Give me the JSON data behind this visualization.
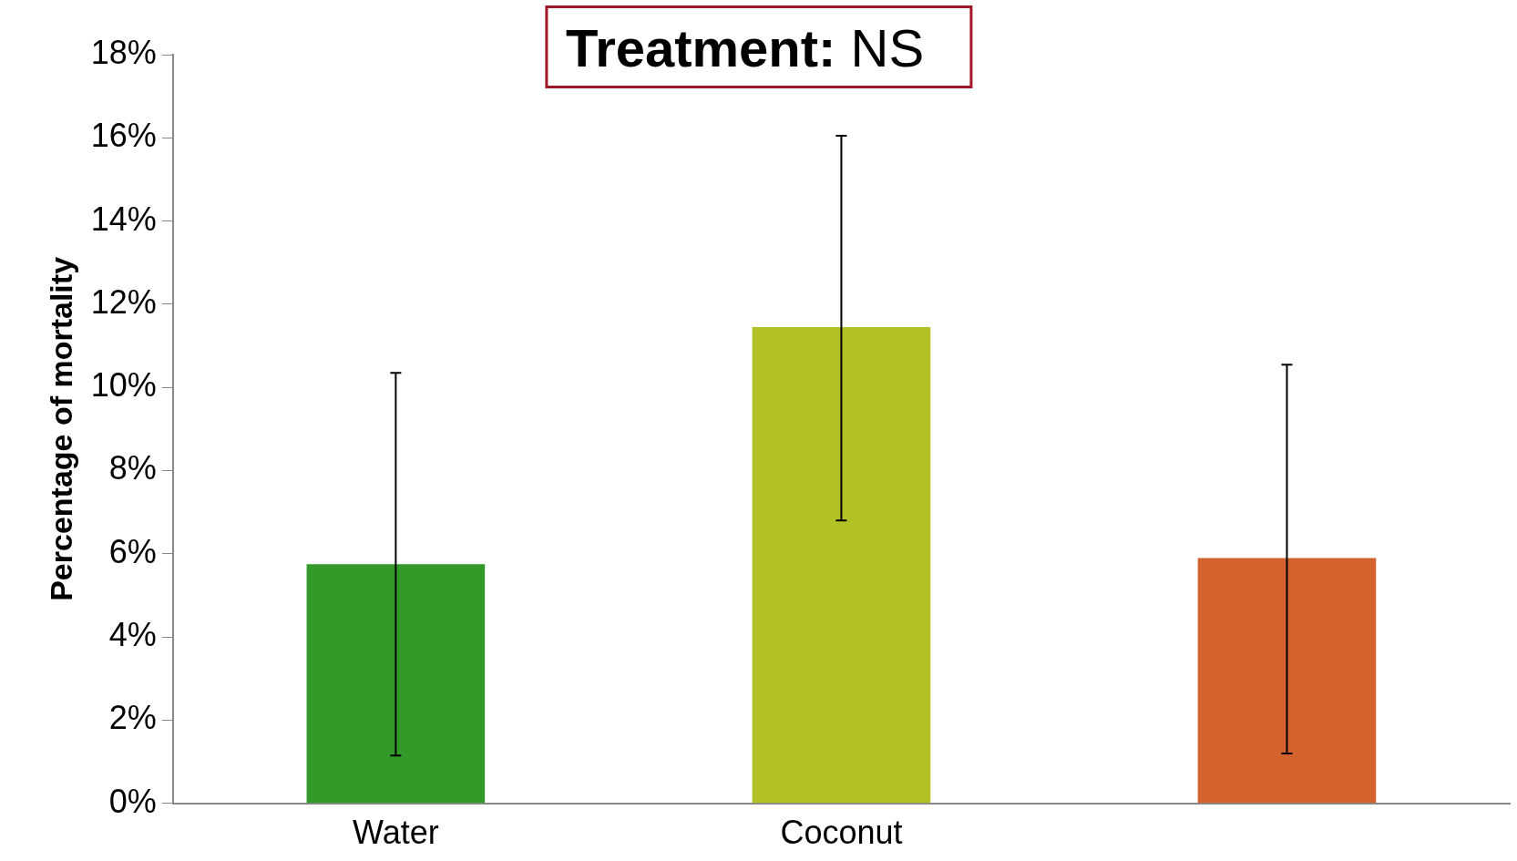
{
  "chart_data": {
    "type": "bar",
    "ylabel": "Percentage of mortality",
    "annotations": [
      "Treatment: NS"
    ],
    "categories": [
      "Water",
      "Coconut",
      null
    ],
    "values": [
      5.75,
      11.45,
      5.9
    ],
    "colors": [
      "#339a2a",
      "#b2c226",
      "#d4622c"
    ],
    "errors": [
      [
        1.15,
        10.35
      ],
      [
        6.8,
        16.05
      ],
      [
        1.2,
        10.55
      ]
    ],
    "ylim": [
      0,
      18
    ],
    "yticks": [
      {
        "value": 0,
        "label": "0%"
      },
      {
        "value": 2,
        "label": "2%"
      },
      {
        "value": 4,
        "label": "4%"
      },
      {
        "value": 6,
        "label": "6%"
      },
      {
        "value": 8,
        "label": "8%"
      },
      {
        "value": 10,
        "label": "10%"
      },
      {
        "value": 12,
        "label": "12%"
      },
      {
        "value": 14,
        "label": "14%"
      },
      {
        "value": 16,
        "label": "16%"
      },
      {
        "value": 18,
        "label": "18%"
      }
    ],
    "grid": false,
    "legend": false
  }
}
